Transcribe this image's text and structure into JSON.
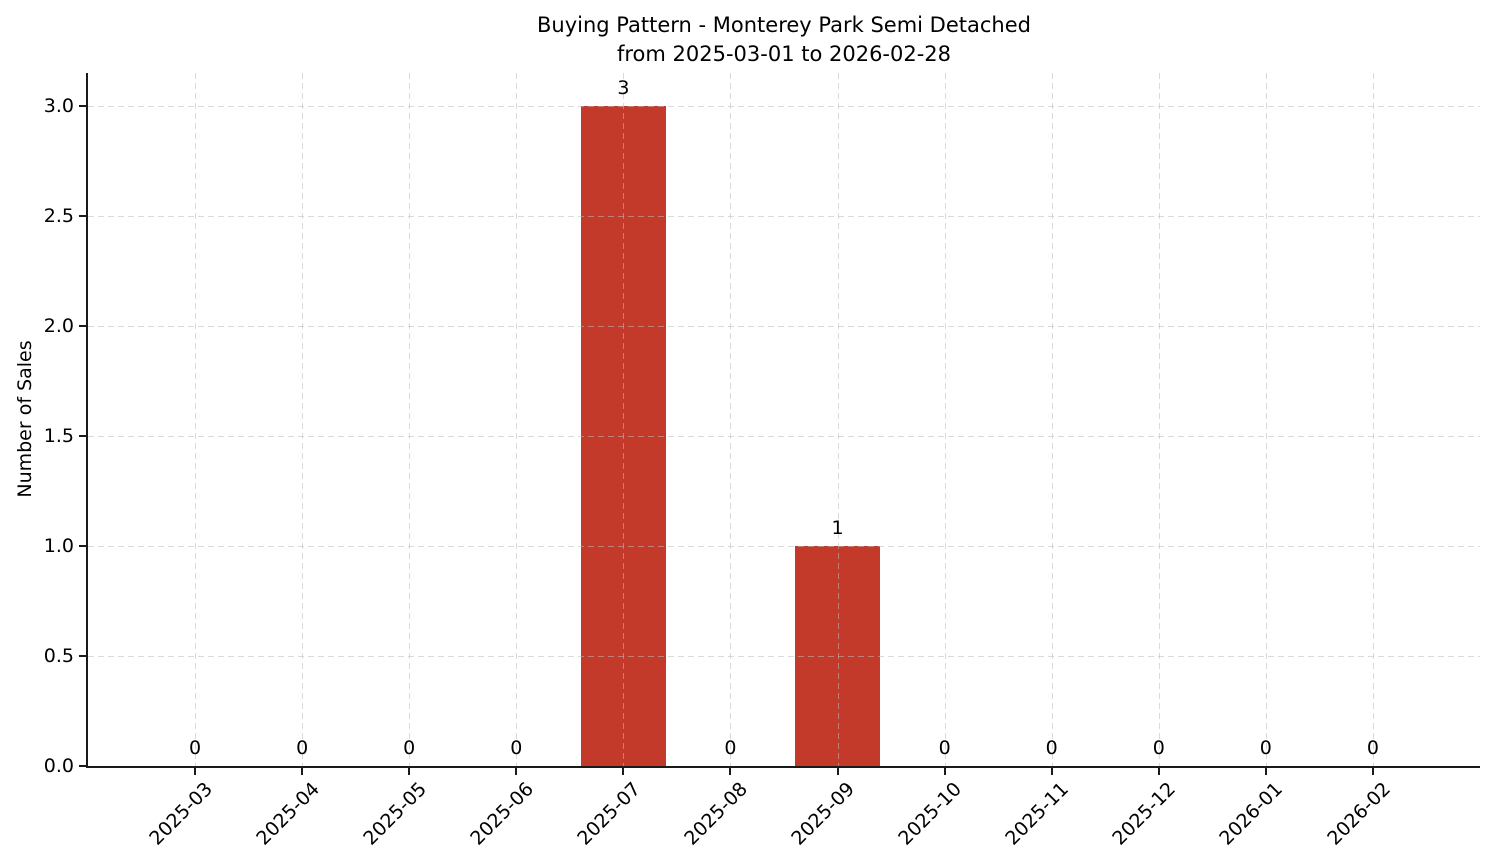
{
  "figure": {
    "title_line1": "Buying Pattern - Monterey Park Semi Detached",
    "title_line2": "from 2025-03-01 to 2026-02-28"
  },
  "chart_data": {
    "type": "bar",
    "title": "Buying Pattern - Monterey Park Semi Detached\nfrom 2025-03-01 to 2026-02-28",
    "categories": [
      "2025-03",
      "2025-04",
      "2025-05",
      "2025-06",
      "2025-07",
      "2025-08",
      "2025-09",
      "2025-10",
      "2025-11",
      "2025-12",
      "2026-01",
      "2026-02"
    ],
    "values": [
      0,
      0,
      0,
      0,
      3,
      0,
      1,
      0,
      0,
      0,
      0,
      0
    ],
    "bar_labels": [
      "0",
      "0",
      "0",
      "0",
      "3",
      "0",
      "1",
      "0",
      "0",
      "0",
      "0",
      "0"
    ],
    "xlabel": "",
    "ylabel": "Number of Sales",
    "ylim": [
      0,
      3.15
    ],
    "yticks": [
      0,
      0.5,
      1,
      1.5,
      2,
      2.5,
      3
    ],
    "ytick_labels": [
      "0.0",
      "0.5",
      "1.0",
      "1.5",
      "2.0",
      "2.5",
      "3.0"
    ],
    "xtick_rotation_deg": 45,
    "grid": true,
    "grid_linestyle": "dashed",
    "bar_width_fraction": 0.8,
    "legend": null
  },
  "colors": {
    "bar": "#c33a2b",
    "axis": "#1a1a1a",
    "grid": "#c9c9c9",
    "text": "#000000",
    "background": "#ffffff"
  }
}
